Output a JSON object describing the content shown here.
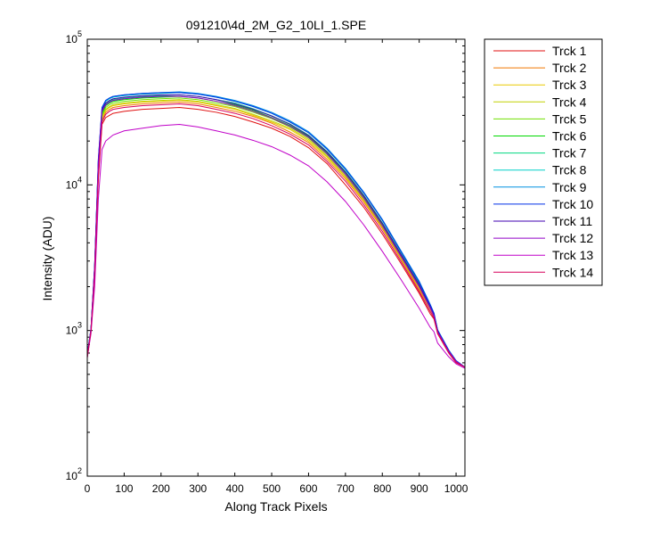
{
  "chart_data": {
    "type": "line",
    "title": "091210\\4d_2M_G2_10LI_1.SPE",
    "xlabel": "Along Track Pixels",
    "ylabel": "Intensity (ADU)",
    "xlim": [
      0,
      1024
    ],
    "ylim": [
      100,
      100000
    ],
    "yscale": "log",
    "grid": false,
    "legend_position": "outside-right",
    "x_ticks": [
      0,
      100,
      200,
      300,
      400,
      500,
      600,
      700,
      800,
      900,
      1000
    ],
    "x_tick_labels": [
      "0",
      "100",
      "200",
      "300",
      "400",
      "500",
      "600",
      "700",
      "800",
      "900",
      "1000"
    ],
    "y_ticks": [
      100,
      1000,
      10000,
      100000
    ],
    "y_tick_labels": [
      {
        "base": "10",
        "exp": "2"
      },
      {
        "base": "10",
        "exp": "3"
      },
      {
        "base": "10",
        "exp": "4"
      },
      {
        "base": "10",
        "exp": "5"
      }
    ],
    "x": [
      0,
      10,
      20,
      30,
      40,
      50,
      60,
      70,
      100,
      150,
      200,
      250,
      300,
      350,
      400,
      450,
      500,
      550,
      600,
      650,
      700,
      750,
      800,
      850,
      900,
      930,
      940,
      950,
      980,
      1000,
      1024
    ],
    "series": [
      {
        "name": "Trck 1",
        "color": "#e01010",
        "values": [
          650,
          1000,
          2400,
          11000,
          26000,
          29000,
          30000,
          31000,
          32000,
          33000,
          33500,
          34000,
          33000,
          31500,
          29500,
          27000,
          24500,
          21500,
          18000,
          14000,
          10000,
          7000,
          4600,
          2900,
          1800,
          1300,
          1200,
          950,
          700,
          600,
          560
        ]
      },
      {
        "name": "Trck 2",
        "color": "#f07800",
        "values": [
          660,
          1000,
          2500,
          12000,
          28000,
          31500,
          33000,
          34000,
          35000,
          36000,
          36500,
          37000,
          36000,
          34000,
          32000,
          29500,
          26500,
          23000,
          19500,
          15000,
          11000,
          7600,
          5000,
          3100,
          1900,
          1400,
          1250,
          970,
          710,
          610,
          560
        ]
      },
      {
        "name": "Trck 3",
        "color": "#e8c800",
        "values": [
          660,
          1000,
          2500,
          12500,
          29000,
          32500,
          34000,
          35000,
          36000,
          37000,
          37500,
          38000,
          37000,
          35000,
          33000,
          30000,
          27000,
          24000,
          20000,
          15500,
          11300,
          7800,
          5100,
          3150,
          1950,
          1400,
          1260,
          975,
          715,
          610,
          560
        ]
      },
      {
        "name": "Trck 4",
        "color": "#c0d000",
        "values": [
          665,
          1000,
          2550,
          12800,
          29500,
          33000,
          34500,
          35500,
          36500,
          37500,
          38000,
          38500,
          37500,
          35500,
          33500,
          30500,
          27500,
          24500,
          20500,
          15800,
          11500,
          7900,
          5150,
          3200,
          1980,
          1420,
          1270,
          980,
          720,
          615,
          560
        ]
      },
      {
        "name": "Trck 5",
        "color": "#70e000",
        "values": [
          670,
          1000,
          2600,
          13000,
          30000,
          34000,
          35500,
          36500,
          37500,
          38500,
          39000,
          39500,
          38500,
          36500,
          34500,
          31500,
          28500,
          25000,
          21000,
          16200,
          11800,
          8100,
          5300,
          3300,
          2020,
          1440,
          1280,
          990,
          720,
          615,
          560
        ]
      },
      {
        "name": "Trck 6",
        "color": "#00d800",
        "values": [
          675,
          1010,
          2650,
          13500,
          31000,
          35000,
          36500,
          37500,
          38500,
          39500,
          40000,
          40500,
          39500,
          37500,
          35500,
          32500,
          29000,
          25500,
          21500,
          16600,
          12100,
          8300,
          5400,
          3350,
          2060,
          1460,
          1290,
          995,
          725,
          615,
          560
        ]
      },
      {
        "name": "Trck 7",
        "color": "#00d880",
        "values": [
          680,
          1010,
          2700,
          14000,
          32000,
          36000,
          37500,
          38500,
          39500,
          40500,
          41000,
          41500,
          40500,
          38500,
          36500,
          33300,
          29800,
          26200,
          22000,
          17000,
          12400,
          8500,
          5500,
          3400,
          2100,
          1480,
          1300,
          1000,
          730,
          620,
          560
        ]
      },
      {
        "name": "Trck 8",
        "color": "#00d0c8",
        "values": [
          690,
          1020,
          2750,
          14500,
          33000,
          37500,
          39000,
          40000,
          41000,
          42000,
          42500,
          43000,
          42000,
          40000,
          37500,
          34500,
          31000,
          27000,
          22800,
          17600,
          12800,
          8800,
          5700,
          3500,
          2150,
          1500,
          1310,
          1010,
          735,
          620,
          560
        ]
      },
      {
        "name": "Trck 9",
        "color": "#0090e0",
        "values": [
          690,
          1020,
          2800,
          15000,
          34000,
          38000,
          39500,
          40500,
          41500,
          42500,
          43000,
          43500,
          42500,
          40500,
          38000,
          35000,
          31500,
          27500,
          23200,
          17900,
          13000,
          8900,
          5800,
          3550,
          2180,
          1510,
          1320,
          1010,
          735,
          620,
          560
        ]
      },
      {
        "name": "Trck 10",
        "color": "#0030e8",
        "values": [
          690,
          1020,
          2800,
          15000,
          34000,
          38000,
          39500,
          40500,
          41500,
          42500,
          43000,
          43000,
          42000,
          40000,
          37500,
          34500,
          31000,
          27000,
          22800,
          17600,
          12800,
          8800,
          5750,
          3500,
          2150,
          1500,
          1310,
          1005,
          730,
          620,
          560
        ]
      },
      {
        "name": "Trck 11",
        "color": "#4000b0",
        "values": [
          685,
          1015,
          2750,
          14500,
          33000,
          36500,
          38000,
          39000,
          40000,
          41000,
          41500,
          41500,
          40500,
          38500,
          36000,
          33000,
          29700,
          26000,
          21800,
          16800,
          12200,
          8400,
          5450,
          3350,
          2060,
          1450,
          1280,
          990,
          725,
          615,
          560
        ]
      },
      {
        "name": "Trck 12",
        "color": "#9000c8",
        "values": [
          680,
          1010,
          2700,
          14000,
          32000,
          35500,
          37000,
          38000,
          39000,
          40000,
          40500,
          40500,
          39500,
          37500,
          35000,
          32000,
          28800,
          25200,
          21200,
          16300,
          11800,
          8100,
          5250,
          3250,
          2000,
          1420,
          1260,
          980,
          720,
          615,
          560
        ]
      },
      {
        "name": "Trck 13",
        "color": "#c000c8",
        "values": [
          650,
          950,
          2000,
          8000,
          17500,
          20000,
          21000,
          22000,
          23500,
          24500,
          25500,
          26000,
          25000,
          23500,
          22000,
          20200,
          18300,
          16000,
          13500,
          10500,
          7700,
          5300,
          3500,
          2250,
          1420,
          1050,
          980,
          820,
          660,
          590,
          550
        ]
      },
      {
        "name": "Trck 14",
        "color": "#d8005a",
        "values": [
          660,
          990,
          2400,
          11500,
          27000,
          30500,
          32000,
          33000,
          34000,
          35000,
          35500,
          36000,
          35000,
          33000,
          31000,
          28500,
          25500,
          22300,
          18800,
          14500,
          10600,
          7300,
          4800,
          3000,
          1850,
          1350,
          1220,
          960,
          705,
          605,
          560
        ]
      }
    ]
  }
}
